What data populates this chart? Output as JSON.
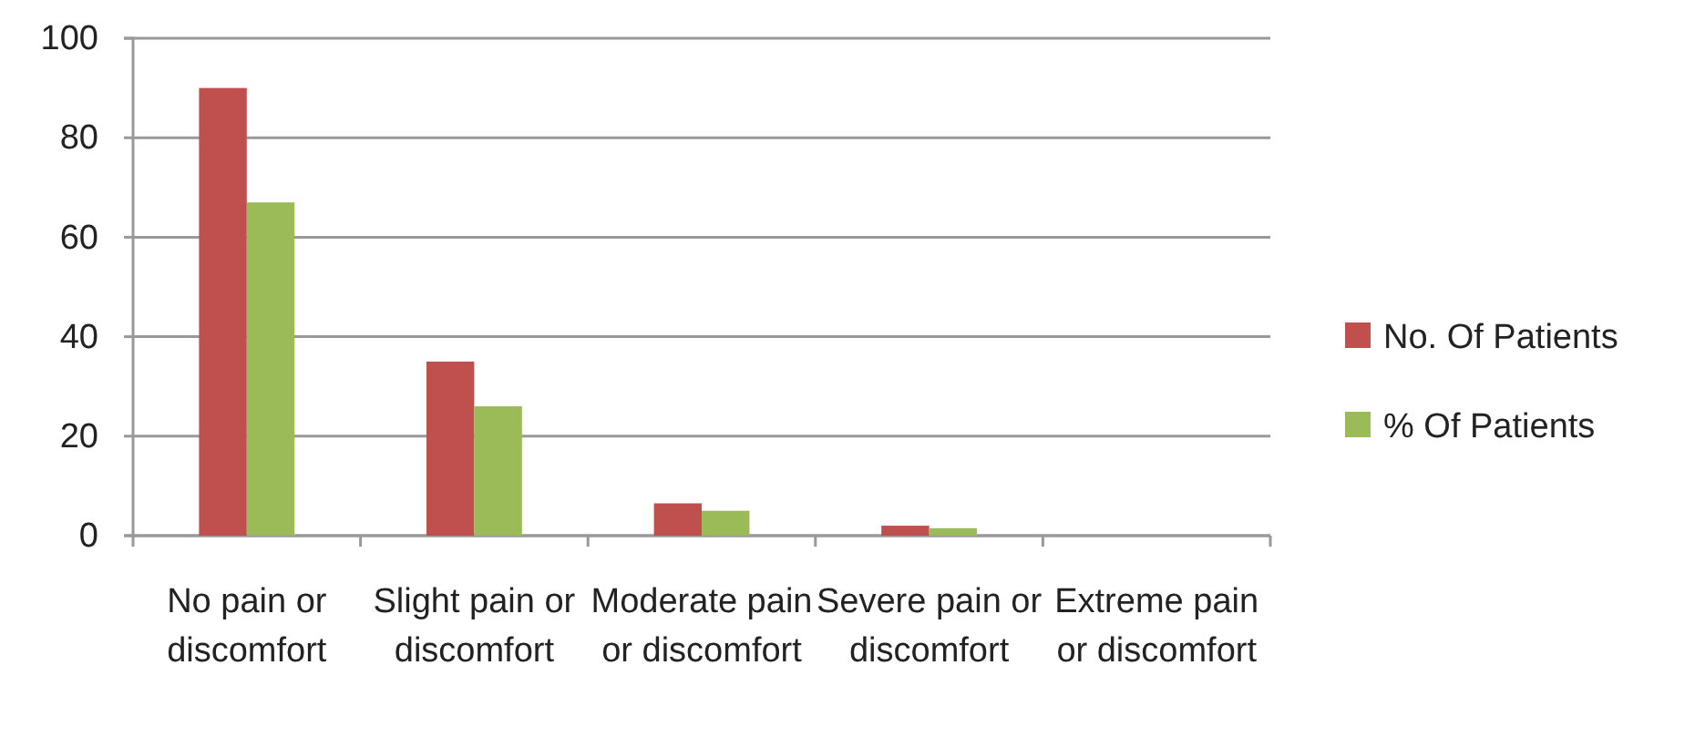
{
  "chart_data": {
    "type": "bar",
    "categories": [
      "No pain or discomfort",
      "Slight pain or discomfort",
      "Moderate pain or discomfort",
      "Severe pain or discomfort",
      "Extreme pain or discomfort"
    ],
    "series": [
      {
        "name": "No. Of Patients",
        "color": "#c0504d",
        "values": [
          90,
          35,
          6.5,
          2,
          0
        ]
      },
      {
        "name": "% Of Patients",
        "color": "#9bbb59",
        "values": [
          67,
          26,
          5,
          1.5,
          0
        ]
      }
    ],
    "ylim": [
      0,
      100
    ],
    "yticks": [
      0,
      20,
      40,
      60,
      80,
      100
    ],
    "grid": "y",
    "legend": "right"
  }
}
